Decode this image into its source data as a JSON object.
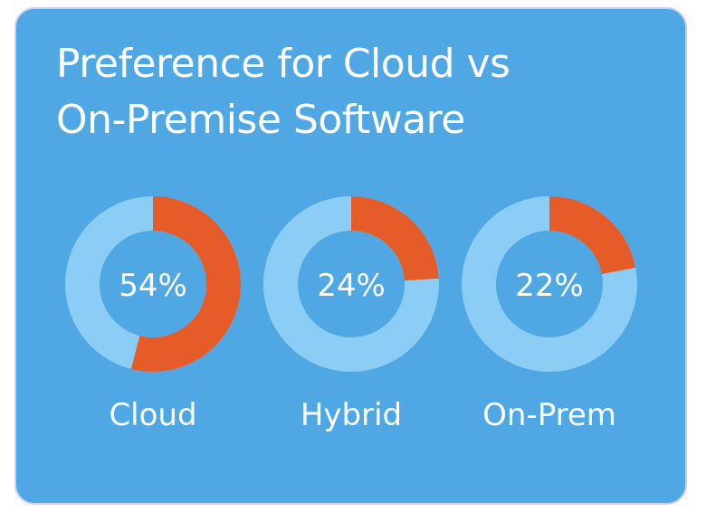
{
  "colors": {
    "background": "#4fa8e3",
    "ring_track": "#8ccdf5",
    "ring_fill": "#e55c29",
    "text": "#ffffff"
  },
  "chart_data": {
    "type": "pie",
    "title": [
      "Preference for Cloud vs",
      "On-Premise Software"
    ],
    "categories": [
      "Cloud",
      "Hybrid",
      "On-Prem"
    ],
    "values": [
      54,
      24,
      22
    ],
    "value_labels": [
      "54%",
      "24%",
      "22%"
    ],
    "unit": "%",
    "style": "donut-per-category"
  }
}
